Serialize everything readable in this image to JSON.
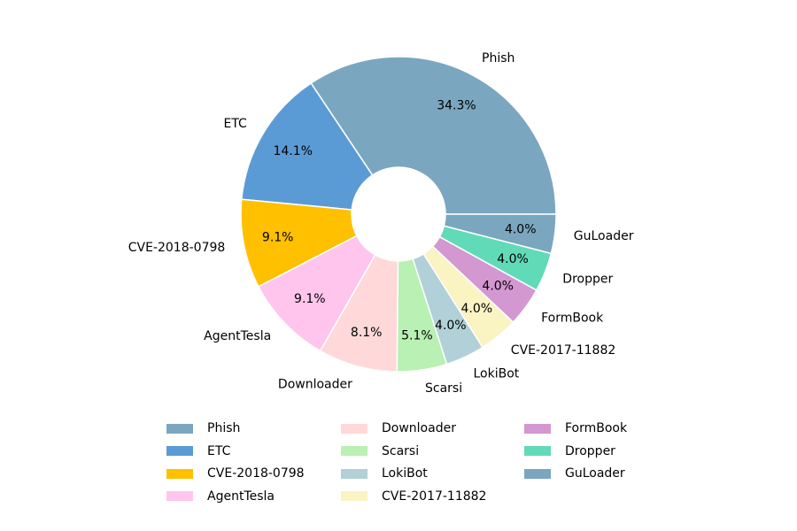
{
  "chart_data": {
    "type": "pie",
    "donut": true,
    "legend_position": "bottom",
    "slices": [
      {
        "label": "Phish",
        "value": 34.3,
        "pct_label": "34.3%",
        "color": "#7ba6bf"
      },
      {
        "label": "ETC",
        "value": 14.1,
        "pct_label": "14.1%",
        "color": "#5b9bd5"
      },
      {
        "label": "CVE-2018-0798",
        "value": 9.1,
        "pct_label": "9.1%",
        "color": "#ffc000"
      },
      {
        "label": "AgentTesla",
        "value": 9.1,
        "pct_label": "9.1%",
        "color": "#ffc5ec"
      },
      {
        "label": "Downloader",
        "value": 8.1,
        "pct_label": "8.1%",
        "color": "#ffd9d9"
      },
      {
        "label": "Scarsi",
        "value": 5.1,
        "pct_label": "5.1%",
        "color": "#b9f0b3"
      },
      {
        "label": "LokiBot",
        "value": 4.0,
        "pct_label": "4.0%",
        "color": "#b1d0d8"
      },
      {
        "label": "CVE-2017-11882",
        "value": 4.0,
        "pct_label": "4.0%",
        "color": "#faf3c2"
      },
      {
        "label": "FormBook",
        "value": 4.0,
        "pct_label": "4.0%",
        "color": "#d397d1"
      },
      {
        "label": "Dropper",
        "value": 4.0,
        "pct_label": "4.0%",
        "color": "#61dab7"
      },
      {
        "label": "GuLoader",
        "value": 4.0,
        "pct_label": "4.0%",
        "color": "#7ba6bf"
      }
    ]
  }
}
